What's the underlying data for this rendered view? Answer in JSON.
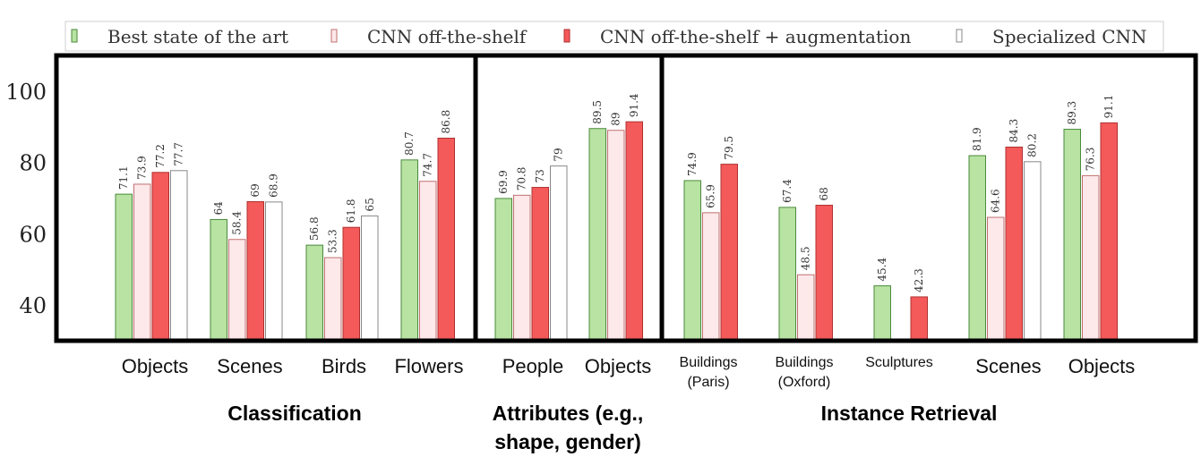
{
  "chart_data": {
    "type": "bar",
    "ylim": [
      30,
      110
    ],
    "yticks": [
      40,
      60,
      80,
      100
    ],
    "grid": false,
    "legend_position": "top",
    "series": [
      {
        "name": "Best state of the art",
        "color": "#b8e3a3",
        "stroke": "#4a8a3a"
      },
      {
        "name": "CNN off-the-shelf",
        "color": "#fde8ea",
        "stroke": "#c07070"
      },
      {
        "name": "CNN off-the-shelf + augmentation",
        "color": "#f45a5a",
        "stroke": "#b03030"
      },
      {
        "name": "Specialized CNN",
        "color": "#ffffff",
        "stroke": "#888888"
      }
    ],
    "groups": [
      {
        "label": "Classification",
        "categories": [
          {
            "label": [
              "Objects"
            ],
            "values": [
              71.1,
              73.9,
              77.2,
              77.7
            ]
          },
          {
            "label": [
              "Scenes"
            ],
            "values": [
              64,
              58.4,
              69,
              68.9
            ]
          },
          {
            "label": [
              "Birds"
            ],
            "values": [
              56.8,
              53.3,
              61.8,
              65
            ]
          },
          {
            "label": [
              "Flowers"
            ],
            "values": [
              80.7,
              74.7,
              86.8,
              null
            ]
          }
        ]
      },
      {
        "label": [
          "Attributes (e.g.,",
          "shape, gender)"
        ],
        "categories": [
          {
            "label": [
              "People"
            ],
            "values": [
              69.9,
              70.8,
              73,
              79
            ]
          },
          {
            "label": [
              "Objects"
            ],
            "values": [
              89.5,
              89,
              91.4,
              null
            ]
          }
        ]
      },
      {
        "label": "Instance Retrieval",
        "categories": [
          {
            "label": [
              "Buildings",
              "(Paris)"
            ],
            "values": [
              74.9,
              65.9,
              79.5,
              null
            ]
          },
          {
            "label": [
              "Buildings",
              "(Oxford)"
            ],
            "values": [
              67.4,
              48.5,
              68,
              null
            ]
          },
          {
            "label": [
              "Sculptures"
            ],
            "values": [
              45.4,
              null,
              42.3,
              null
            ]
          },
          {
            "label": [
              "Scenes"
            ],
            "values": [
              81.9,
              64.6,
              84.3,
              80.2
            ]
          },
          {
            "label": [
              "Objects"
            ],
            "values": [
              89.3,
              76.3,
              91.1,
              null
            ]
          }
        ]
      }
    ]
  }
}
